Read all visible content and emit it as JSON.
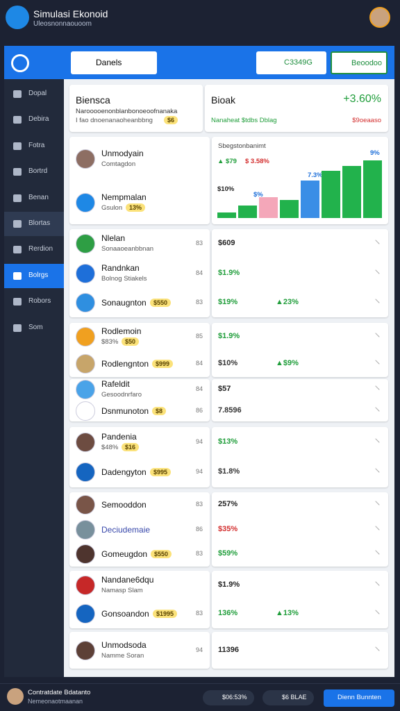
{
  "header": {
    "title": "Simulasi Ekonoid",
    "subtitle": "Uleosnonnaouoom"
  },
  "toolbar": {
    "search": "Danels",
    "button_1": "C3349G",
    "button_2": "Beoodoo"
  },
  "sidebar": {
    "items": [
      {
        "label": "Dopal"
      },
      {
        "label": "Debira"
      },
      {
        "label": "Fotra"
      },
      {
        "label": "Bortrd"
      },
      {
        "label": "Benan"
      },
      {
        "label": "Blortas",
        "highlight": true
      },
      {
        "label": "Rerdion"
      },
      {
        "label": "Bolrgs",
        "selected": true
      },
      {
        "label": "Robors"
      },
      {
        "label": "Som"
      }
    ]
  },
  "summary": {
    "left": {
      "title": "Biensca",
      "line_1": "Narooooenonblanbonoeoofnanaka",
      "line_2": "I fao dnoenanaoheanbbng",
      "badge": "$6"
    },
    "right": {
      "title": "Bioak",
      "change": "+3.60%",
      "line_1": "Nanaheat $tdbs Dblag",
      "line_2": "$9oeaaso"
    }
  },
  "chart": {
    "title": "Sbegstonbanimt",
    "label_1": "▲ $79",
    "label_2": "$ 3.58%",
    "label_3": "$10%",
    "label_4": "7.3%",
    "label_5": "9%",
    "label_6": "$%",
    "ylim": [
      0,
      90
    ],
    "values": [
      8,
      18,
      30,
      26,
      54,
      68,
      75,
      83
    ],
    "colors": [
      "#22b24c",
      "#22b24c",
      "#f4a7b9",
      "#22b24c",
      "#3a8ee6",
      "#22b24c",
      "#22b24c",
      "#22b24c"
    ]
  },
  "groups": [
    {
      "items": [
        {
          "title": "Unmodyain",
          "sub": "Comtagdon",
          "icon": "#8d6e63"
        },
        {
          "title": "Nempmalan",
          "sub": "Gsulon",
          "badge": "13%",
          "icon": "#1e88e5"
        }
      ]
    },
    {
      "items": [
        {
          "title": "Nlelan",
          "sub": "Sonaaoeanbbnan",
          "count": "83",
          "value": "$609",
          "color": "#222",
          "icon": "#2e9e44"
        },
        {
          "title": "Randnkan",
          "sub": "Bolnog Stiakels",
          "count": "84",
          "value": "$1.9%",
          "color": "#1f9d3a",
          "icon": "#1e6fd9"
        },
        {
          "title": "Sonaugnton",
          "badge": "$550",
          "count": "83",
          "value": "$19%",
          "change": "▲23%",
          "color": "#1f9d3a",
          "icon": "#2f8fe0"
        }
      ]
    },
    {
      "items": [
        {
          "title": "Rodlemoin",
          "sub": "$83%",
          "badge": "$50",
          "count": "85",
          "value": "$1.9%",
          "color": "#1f9d3a",
          "icon": "#f0a020"
        },
        {
          "title": "Rodlengnton",
          "badge": "$999",
          "count": "84",
          "value": "$10%",
          "change": "▲$9%",
          "color": "#333",
          "icon": "#c7a56a"
        }
      ]
    },
    {
      "items": [
        {
          "title": "Rafeldit",
          "sub": "Gesoodnrfaro",
          "count": "84",
          "value": "$57",
          "color": "#222",
          "icon": "#4aa3e8"
        },
        {
          "title": "Dsnmunoton",
          "badge": "$8",
          "count": "86",
          "value": "7.8596",
          "color": "#333",
          "icon": "#ffffff"
        }
      ]
    },
    {
      "items": [
        {
          "title": "Pandenia",
          "sub": "$48%",
          "badge": "$16",
          "count": "94",
          "value": "$13%",
          "color": "#1f9d3a",
          "icon": "#6d4c41"
        },
        {
          "title": "Dadengyton",
          "badge": "$995",
          "count": "94",
          "value": "$1.8%",
          "color": "#333",
          "icon": "#1565c0"
        }
      ]
    },
    {
      "items": [
        {
          "title": "Semooddon",
          "count": "83",
          "value": "257%",
          "color": "#222",
          "icon": "#795548"
        },
        {
          "title": "Deciudemaie",
          "count": "86",
          "value": "$35%",
          "color": "#d32f2f",
          "icon": "#78909c",
          "title_color": "#3949ab"
        },
        {
          "title": "Gomeugdon",
          "badge": "$550",
          "count": "83",
          "value": "$59%",
          "color": "#1f9d3a",
          "icon": "#4e342e"
        }
      ]
    },
    {
      "items": [
        {
          "title": "Nandane6dqu",
          "sub": "Namasp Slam",
          "value": "$1.9%",
          "color": "#222",
          "icon": "#c62828"
        },
        {
          "title": "Gonsoandon",
          "badge": "$1995",
          "count": "83",
          "value": "136%",
          "change": "▲13%",
          "color": "#1f9d3a",
          "icon": "#1565c0"
        }
      ]
    },
    {
      "items": [
        {
          "title": "Unmodsoda",
          "sub": "Namme Soran",
          "count": "94",
          "value": "11396",
          "color": "#222",
          "icon": "#5d4037"
        }
      ]
    }
  ],
  "footer": {
    "name": "Contratdate Bdatanto",
    "sub": "Nemeonaotmaanan",
    "pill_1": "$06:53%",
    "pill_2": "$6 BLAE",
    "button": "Dienn Bunnten"
  }
}
